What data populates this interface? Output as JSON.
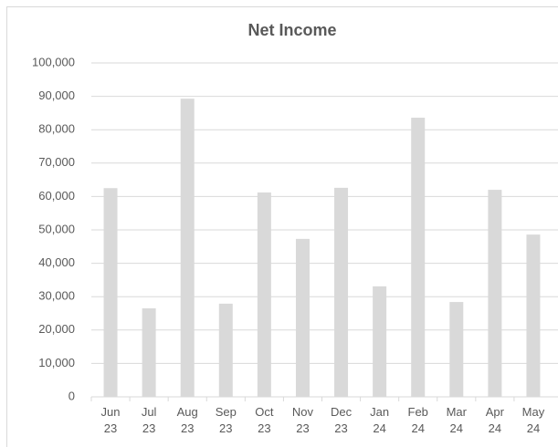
{
  "chart_data": {
    "type": "bar",
    "title": "Net Income",
    "categories": [
      "Jun 23",
      "Jul 23",
      "Aug 23",
      "Sep 23",
      "Oct 23",
      "Nov 23",
      "Dec 23",
      "Jan 24",
      "Feb 24",
      "Mar 24",
      "Apr 24",
      "May 24"
    ],
    "values": [
      62500,
      26500,
      89300,
      27900,
      61200,
      47300,
      62600,
      33100,
      83600,
      28400,
      62000,
      48600
    ],
    "color": "#d9d9d9",
    "ylim": [
      0,
      100000
    ],
    "yticks": [
      0,
      {
        "value": 10000,
        "label": "10,000"
      },
      {
        "value": 20000,
        "label": "20,000"
      },
      {
        "value": 30000,
        "label": "30,000"
      },
      {
        "value": 40000,
        "label": "40,000"
      },
      {
        "value": 50000,
        "label": "50,000"
      },
      {
        "value": 60000,
        "label": "60,000"
      },
      {
        "value": 70000,
        "label": "70,000"
      },
      {
        "value": 80000,
        "label": "80,000"
      },
      {
        "value": 90000,
        "label": "90,000"
      },
      {
        "value": 100000,
        "label": "100,000"
      }
    ],
    "grid": true
  }
}
